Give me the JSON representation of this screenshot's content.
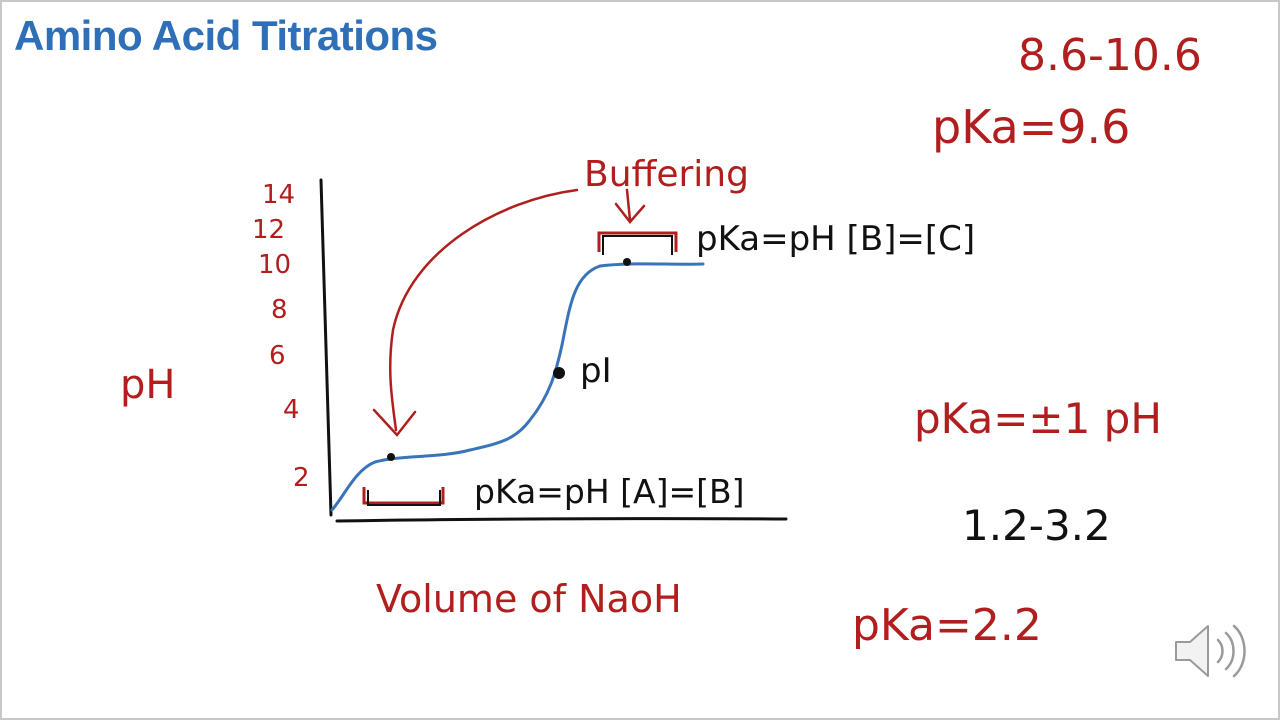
{
  "slide": {
    "title": "Amino Acid Titrations"
  },
  "colors": {
    "title": "#2e6fb7",
    "ink_red": "#b01e1e",
    "ink_black": "#111111",
    "curve_blue": "#3a74b8"
  },
  "diagram": {
    "y_axis_label": "pH",
    "x_axis_label": "Volume of NaoH",
    "y_ticks": [
      "2",
      "4",
      "6",
      "8",
      "10",
      "12",
      "14"
    ],
    "buffering_label": "Buffering",
    "pi_label": "pI",
    "lower_equation": "pKa=pH [A]=[B]",
    "upper_equation": "pKa=pH [B]=[C]"
  },
  "notes": {
    "range_high": "8.6-10.6",
    "pka_high": "pKa=9.6",
    "rule": "pKa=±1 pH",
    "range_low": "1.2-3.2",
    "pka_low": "pKa=2.2"
  },
  "icons": {
    "speaker": "speaker-icon"
  }
}
